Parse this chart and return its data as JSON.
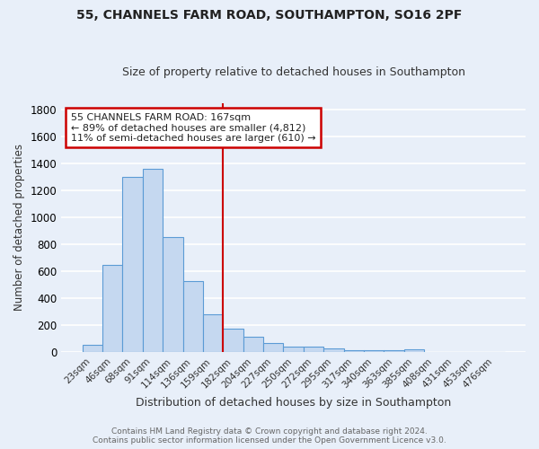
{
  "title1": "55, CHANNELS FARM ROAD, SOUTHAMPTON, SO16 2PF",
  "title2": "Size of property relative to detached houses in Southampton",
  "xlabel": "Distribution of detached houses by size in Southampton",
  "ylabel": "Number of detached properties",
  "categories": [
    "23sqm",
    "46sqm",
    "68sqm",
    "91sqm",
    "114sqm",
    "136sqm",
    "159sqm",
    "182sqm",
    "204sqm",
    "227sqm",
    "250sqm",
    "272sqm",
    "295sqm",
    "317sqm",
    "340sqm",
    "363sqm",
    "385sqm",
    "408sqm",
    "431sqm",
    "453sqm",
    "476sqm"
  ],
  "values": [
    55,
    645,
    1300,
    1360,
    850,
    525,
    280,
    175,
    110,
    65,
    40,
    37,
    27,
    15,
    10,
    10,
    17,
    0,
    0,
    0,
    0
  ],
  "bar_color": "#c5d8f0",
  "bar_edge_color": "#5b9bd5",
  "bg_color": "#e8eff9",
  "grid_color": "#d0d8e8",
  "annotation_line1": "55 CHANNELS FARM ROAD: 167sqm",
  "annotation_line2": "← 89% of detached houses are smaller (4,812)",
  "annotation_line3": "11% of semi-detached houses are larger (610) →",
  "annotation_box_color": "#ffffff",
  "annotation_box_edge": "#cc0000",
  "vline_color": "#cc0000",
  "vline_x": 6.5,
  "ylim": [
    0,
    1850
  ],
  "yticks": [
    0,
    200,
    400,
    600,
    800,
    1000,
    1200,
    1400,
    1600,
    1800
  ],
  "footer1": "Contains HM Land Registry data © Crown copyright and database right 2024.",
  "footer2": "Contains public sector information licensed under the Open Government Licence v3.0.",
  "fig_bg_color": "#e8eff9"
}
